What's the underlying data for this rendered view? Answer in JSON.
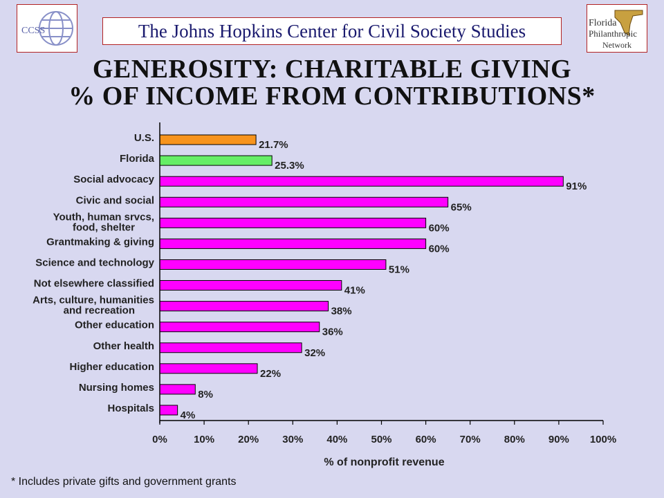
{
  "header": {
    "banner_text": "The Johns Hopkins Center for Civil Society Studies",
    "logo_left_text": "CCSS",
    "logo_right_lines": [
      "Florida",
      "Philanthropic",
      "Network"
    ]
  },
  "footnote": "* Includes private gifts and government grants",
  "colors": {
    "us": "#f7941d",
    "florida": "#66ee66",
    "default": "#ff00ff"
  },
  "chart_data": {
    "type": "bar",
    "orientation": "horizontal",
    "title": "GENEROSITY: CHARITABLE GIVING",
    "subtitle": "% OF INCOME FROM CONTRIBUTIONS*",
    "xlabel": "% of nonprofit revenue",
    "ylabel": "",
    "xlim": [
      0,
      100
    ],
    "x_ticks": [
      "0%",
      "10%",
      "20%",
      "30%",
      "40%",
      "50%",
      "60%",
      "70%",
      "80%",
      "90%",
      "100%"
    ],
    "grid": false,
    "bars": [
      {
        "label": [
          "U.S."
        ],
        "value": 21.7,
        "value_label": "21.7%",
        "color_key": "us"
      },
      {
        "label": [
          "Florida"
        ],
        "value": 25.3,
        "value_label": "25.3%",
        "color_key": "florida"
      },
      {
        "label": [
          "Social advocacy"
        ],
        "value": 91,
        "value_label": "91%",
        "color_key": "default"
      },
      {
        "label": [
          "Civic and social"
        ],
        "value": 65,
        "value_label": "65%",
        "color_key": "default"
      },
      {
        "label": [
          "Youth, human srvcs,",
          "food, shelter"
        ],
        "value": 60,
        "value_label": "60%",
        "color_key": "default"
      },
      {
        "label": [
          "Grantmaking & giving"
        ],
        "value": 60,
        "value_label": "60%",
        "color_key": "default"
      },
      {
        "label": [
          "Science and technology"
        ],
        "value": 51,
        "value_label": "51%",
        "color_key": "default"
      },
      {
        "label": [
          "Not elsewhere classified"
        ],
        "value": 41,
        "value_label": "41%",
        "color_key": "default"
      },
      {
        "label": [
          "Arts, culture, humanities",
          "and recreation"
        ],
        "value": 38,
        "value_label": "38%",
        "color_key": "default"
      },
      {
        "label": [
          "Other education"
        ],
        "value": 36,
        "value_label": "36%",
        "color_key": "default"
      },
      {
        "label": [
          "Other health"
        ],
        "value": 32,
        "value_label": "32%",
        "color_key": "default"
      },
      {
        "label": [
          "Higher education"
        ],
        "value": 22,
        "value_label": "22%",
        "color_key": "default"
      },
      {
        "label": [
          "Nursing homes"
        ],
        "value": 8,
        "value_label": "8%",
        "color_key": "default"
      },
      {
        "label": [
          "Hospitals"
        ],
        "value": 4,
        "value_label": "4%",
        "color_key": "default"
      }
    ]
  }
}
